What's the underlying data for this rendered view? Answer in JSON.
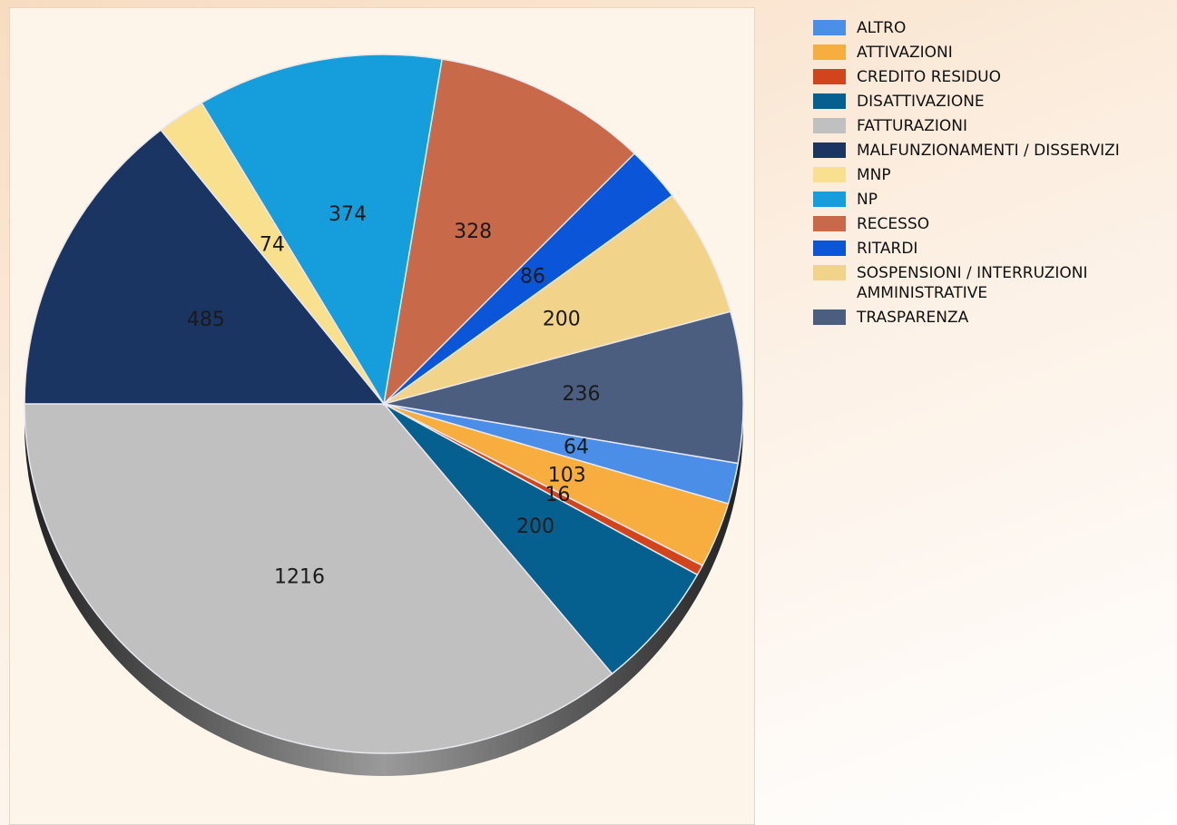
{
  "chart_data": {
    "type": "pie",
    "categories": [
      "ALTRO",
      "ATTIVAZIONI",
      "CREDITO RESIDUO",
      "DISATTIVAZIONE",
      "FATTURAZIONI",
      "MALFUNZIONAMENTI / DISSERVIZI",
      "MNP",
      "NP",
      "RECESSO",
      "RITARDI",
      "SOSPENSIONI / INTERRUZIONI AMMINISTRATIVE",
      "TRASPARENZA"
    ],
    "values": [
      64,
      103,
      16,
      200,
      1216,
      485,
      74,
      374,
      328,
      86,
      200,
      236
    ],
    "colors": [
      "#4a8ee8",
      "#f8ae3f",
      "#d2441c",
      "#06608f",
      "#c0c0c0",
      "#1b3563",
      "#f8e08e",
      "#159ddc",
      "#c8694a",
      "#0a55d8",
      "#f2d38a",
      "#4b5e80"
    ],
    "legend": "right"
  }
}
